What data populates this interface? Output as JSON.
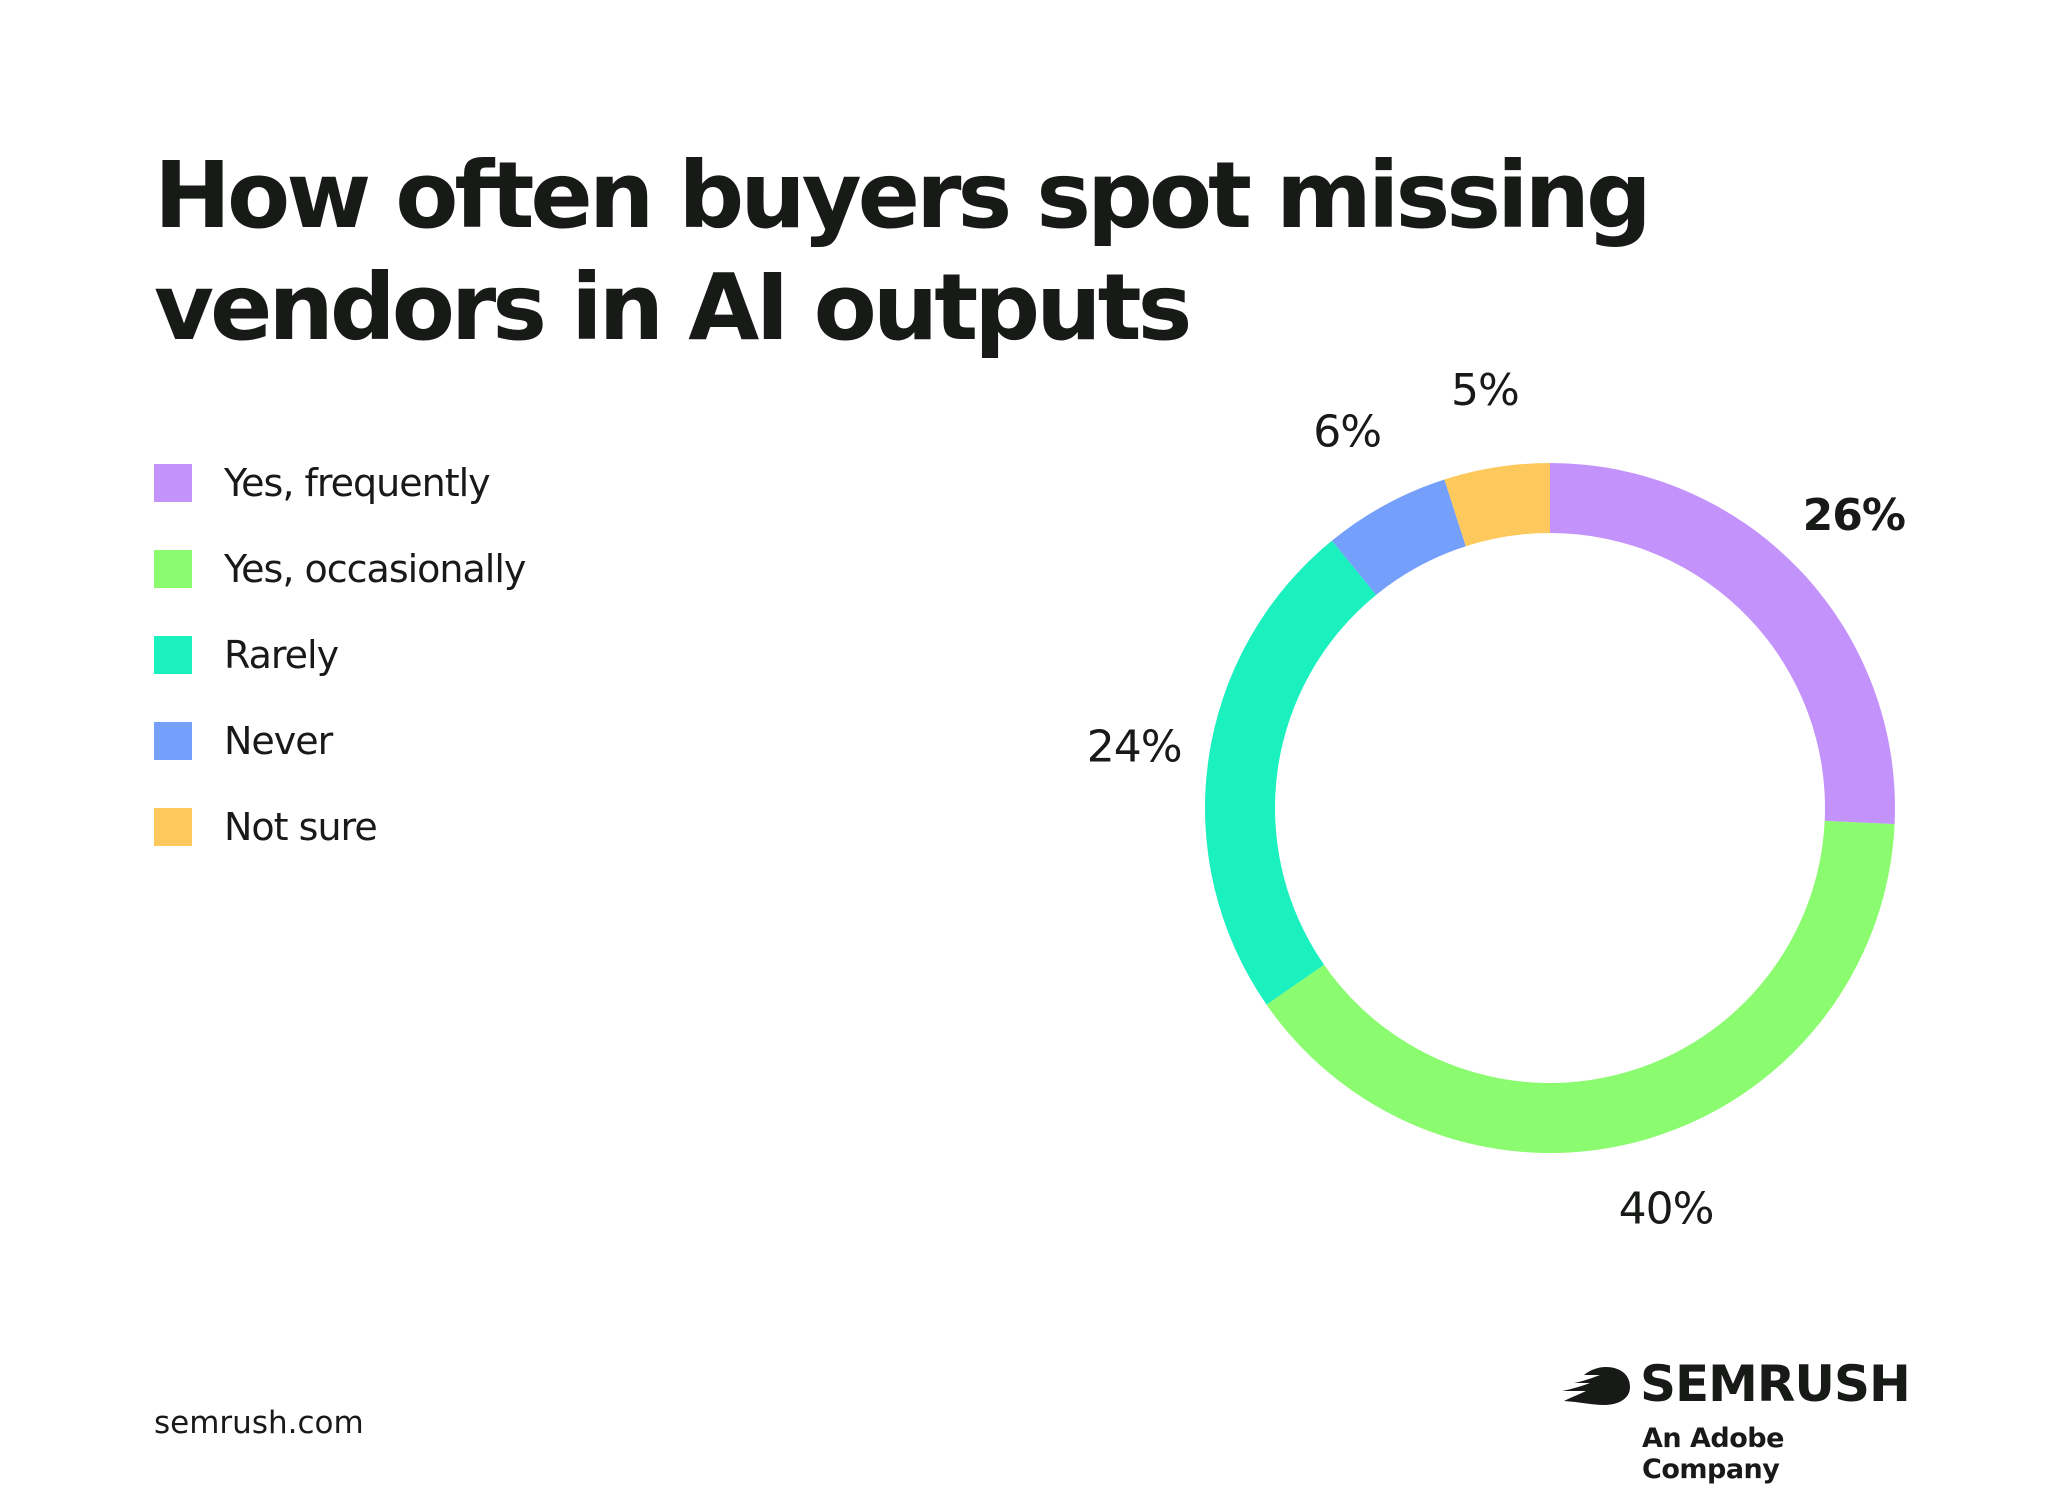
{
  "footer": {
    "url": "semrush.com",
    "brand_name": "SEMRUSH",
    "brand_tagline": "An Adobe Company"
  },
  "icons": {
    "brand_logo": "semrush-flame-icon"
  },
  "chart_data": {
    "type": "pie",
    "variant": "donut",
    "title": "How often buyers spot missing vendors in AI outputs",
    "legend_position": "left",
    "categories": [
      "Yes, frequently",
      "Yes, occasionally",
      "Rarely",
      "Never",
      "Not sure"
    ],
    "values": [
      26,
      40,
      24,
      6,
      5
    ],
    "labels": [
      "26%",
      "40%",
      "24%",
      "6%",
      "5%"
    ],
    "colors": [
      "#c392fb",
      "#8bfb6f",
      "#1bf0bf",
      "#749ffb",
      "#fec95c"
    ]
  }
}
